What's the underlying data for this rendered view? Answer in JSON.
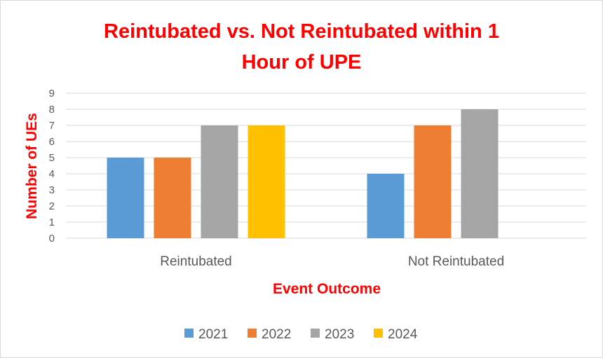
{
  "colors": {
    "title": "#ff0000",
    "axis_title": "#ff0000",
    "tick_label": "#595959",
    "gridline": "#d9d9d9",
    "series": [
      "#5b9bd5",
      "#ed7d31",
      "#a5a5a5",
      "#ffc000"
    ]
  },
  "chart_data": {
    "type": "bar",
    "title_lines": [
      "Reintubated vs. Not Reintubated within 1",
      "Hour of UPE"
    ],
    "xlabel": "Event Outcome",
    "ylabel": "Number of UEs",
    "categories": [
      "Reintubated",
      "Not Reintubated"
    ],
    "series": [
      {
        "name": "2021",
        "values": [
          5,
          4
        ]
      },
      {
        "name": "2022",
        "values": [
          5,
          7
        ]
      },
      {
        "name": "2023",
        "values": [
          7,
          8
        ]
      },
      {
        "name": "2024",
        "values": [
          7,
          null
        ]
      }
    ],
    "ylim": [
      0,
      9
    ],
    "yticks": [
      "0",
      "1",
      "2",
      "3",
      "4",
      "5",
      "6",
      "7",
      "8",
      "9"
    ],
    "grid": true,
    "legend_position": "bottom"
  }
}
